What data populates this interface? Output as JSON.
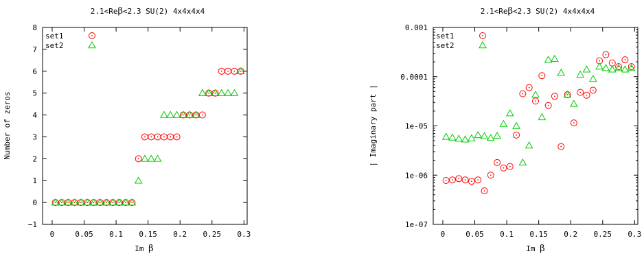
{
  "chart_data": [
    {
      "type": "scatter",
      "title_pre": "2.1<Re",
      "title_sym": "β",
      "title_post": "<2.3 SU(2) 4x4x4x4",
      "xlabel_pre": "Im ",
      "xlabel_sym": "β",
      "ylabel": "Number of zeros",
      "xlim": [
        -0.015,
        0.305
      ],
      "ylim": [
        -1,
        8
      ],
      "xticks": [
        "0",
        "0.05",
        "0.1",
        "0.15",
        "0.2",
        "0.25",
        "0.3"
      ],
      "xtick_values": [
        0,
        0.05,
        0.1,
        0.15,
        0.2,
        0.25,
        0.3
      ],
      "yticks": [
        "−1",
        "0",
        "1",
        "2",
        "3",
        "4",
        "5",
        "6",
        "7",
        "8"
      ],
      "ytick_values": [
        -1,
        0,
        1,
        2,
        3,
        4,
        5,
        6,
        7,
        8
      ],
      "legend_position": "top-left",
      "series": [
        {
          "name": "set1",
          "marker": "circle",
          "color": "#ff0000",
          "x": [
            0.005,
            0.015,
            0.025,
            0.035,
            0.045,
            0.055,
            0.065,
            0.075,
            0.085,
            0.095,
            0.105,
            0.115,
            0.125,
            0.135,
            0.145,
            0.155,
            0.165,
            0.175,
            0.185,
            0.195,
            0.205,
            0.215,
            0.225,
            0.235,
            0.245,
            0.255,
            0.265,
            0.275,
            0.285,
            0.295
          ],
          "y": [
            0,
            0,
            0,
            0,
            0,
            0,
            0,
            0,
            0,
            0,
            0,
            0,
            0,
            2,
            3,
            3,
            3,
            3,
            3,
            3,
            4,
            4,
            4,
            4,
            5,
            5,
            6,
            6,
            6,
            6
          ]
        },
        {
          "name": "set2",
          "marker": "triangle",
          "color": "#00cc00",
          "x": [
            0.005,
            0.015,
            0.025,
            0.035,
            0.045,
            0.055,
            0.065,
            0.075,
            0.085,
            0.095,
            0.105,
            0.115,
            0.125,
            0.135,
            0.145,
            0.155,
            0.165,
            0.175,
            0.185,
            0.195,
            0.205,
            0.215,
            0.225,
            0.235,
            0.245,
            0.255,
            0.265,
            0.275,
            0.285,
            0.295
          ],
          "y": [
            0,
            0,
            0,
            0,
            0,
            0,
            0,
            0,
            0,
            0,
            0,
            0,
            0,
            1,
            2,
            2,
            2,
            4,
            4,
            4,
            4,
            4,
            4,
            5,
            5,
            5,
            5,
            5,
            5,
            6
          ]
        }
      ]
    },
    {
      "type": "scatter",
      "title_pre": "2.1<Re",
      "title_sym": "β",
      "title_post": "<2.3 SU(2) 4x4x4x4",
      "xlabel_pre": "Im ",
      "xlabel_sym": "β",
      "ylabel": "| Imaginary part |",
      "y_scale": "log",
      "xlim": [
        -0.015,
        0.305
      ],
      "ylim": [
        1e-07,
        0.001
      ],
      "xticks": [
        "0",
        "0.05",
        "0.1",
        "0.15",
        "0.2",
        "0.25",
        "0.3"
      ],
      "xtick_values": [
        0,
        0.05,
        0.1,
        0.15,
        0.2,
        0.25,
        0.3
      ],
      "yticks": [
        "1e-07",
        "1e-06",
        "1e-05",
        "0.0001",
        "0.001"
      ],
      "ytick_values": [
        1e-07,
        1e-06,
        1e-05,
        0.0001,
        0.001
      ],
      "legend_position": "top-left",
      "series": [
        {
          "name": "set1",
          "marker": "circle",
          "color": "#ff0000",
          "x": [
            0.005,
            0.015,
            0.025,
            0.035,
            0.045,
            0.055,
            0.065,
            0.075,
            0.085,
            0.095,
            0.105,
            0.115,
            0.125,
            0.135,
            0.145,
            0.155,
            0.165,
            0.175,
            0.185,
            0.195,
            0.205,
            0.215,
            0.225,
            0.235,
            0.245,
            0.255,
            0.265,
            0.275,
            0.285,
            0.295
          ],
          "y": [
            7.8e-07,
            8e-07,
            8.5e-07,
            8e-07,
            7.5e-07,
            8e-07,
            4.8e-07,
            1e-06,
            1.8e-06,
            1.4e-06,
            1.5e-06,
            6.5e-06,
            4.5e-05,
            6e-05,
            3.2e-05,
            0.000105,
            2.6e-05,
            4e-05,
            3.8e-06,
            4.3e-05,
            1.15e-05,
            4.8e-05,
            4.2e-05,
            5.3e-05,
            0.00021,
            0.00028,
            0.00019,
            0.00016,
            0.00022,
            0.00016
          ]
        },
        {
          "name": "set2",
          "marker": "triangle",
          "color": "#00cc00",
          "x": [
            0.005,
            0.015,
            0.025,
            0.035,
            0.045,
            0.055,
            0.065,
            0.075,
            0.085,
            0.095,
            0.105,
            0.115,
            0.125,
            0.135,
            0.145,
            0.155,
            0.165,
            0.175,
            0.185,
            0.195,
            0.205,
            0.215,
            0.225,
            0.235,
            0.245,
            0.255,
            0.265,
            0.275,
            0.285,
            0.295
          ],
          "y": [
            6e-06,
            5.8e-06,
            5.5e-06,
            5.3e-06,
            5.6e-06,
            6.5e-06,
            6.2e-06,
            5.7e-06,
            6.3e-06,
            1.1e-05,
            1.8e-05,
            1e-05,
            1.8e-06,
            4e-06,
            4.3e-05,
            1.5e-05,
            0.00022,
            0.00023,
            0.00012,
            4.3e-05,
            2.8e-05,
            0.00011,
            0.00014,
            9e-05,
            0.00016,
            0.00015,
            0.00014,
            0.00015,
            0.00014,
            0.00015
          ]
        }
      ]
    }
  ]
}
